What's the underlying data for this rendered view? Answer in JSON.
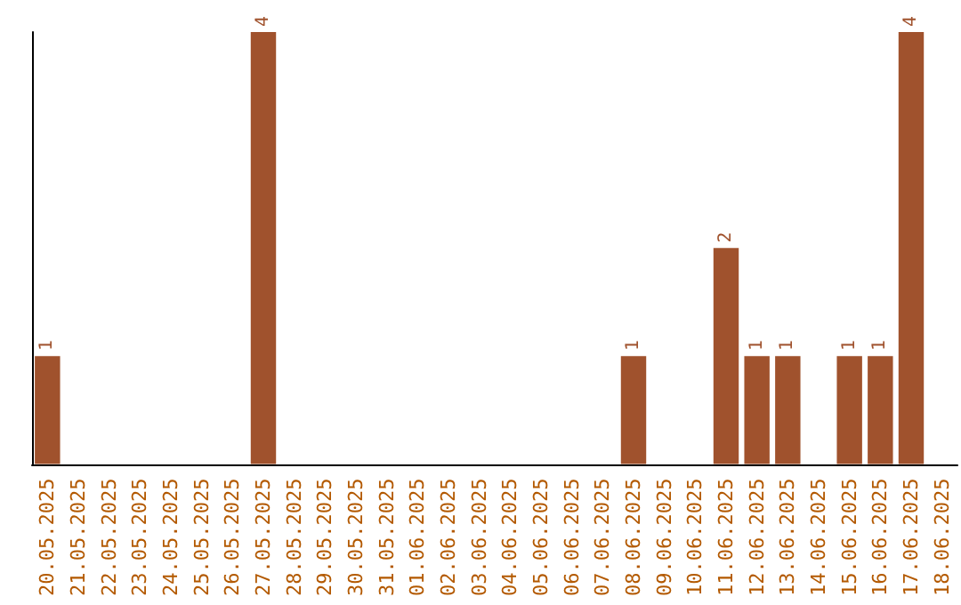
{
  "chart_data": {
    "type": "bar",
    "categories": [
      "20.05.2025",
      "21.05.2025",
      "22.05.2025",
      "23.05.2025",
      "24.05.2025",
      "25.05.2025",
      "26.05.2025",
      "27.05.2025",
      "28.05.2025",
      "29.05.2025",
      "30.05.2025",
      "31.05.2025",
      "01.06.2025",
      "02.06.2025",
      "03.06.2025",
      "04.06.2025",
      "05.06.2025",
      "06.06.2025",
      "07.06.2025",
      "08.06.2025",
      "09.06.2025",
      "10.06.2025",
      "11.06.2025",
      "12.06.2025",
      "13.06.2025",
      "14.06.2025",
      "15.06.2025",
      "16.06.2025",
      "17.06.2025",
      "18.06.2025"
    ],
    "values": [
      1,
      0,
      0,
      0,
      0,
      0,
      0,
      4,
      0,
      0,
      0,
      0,
      0,
      0,
      0,
      0,
      0,
      0,
      0,
      1,
      0,
      0,
      2,
      1,
      1,
      0,
      1,
      1,
      4,
      0
    ],
    "value_labels": [
      "1",
      null,
      null,
      null,
      null,
      null,
      null,
      "4",
      null,
      null,
      null,
      null,
      null,
      null,
      null,
      null,
      null,
      null,
      null,
      "1",
      null,
      null,
      "2",
      "1",
      "1",
      null,
      "1",
      "1",
      "4",
      null
    ],
    "color": "#a0522d",
    "ylim": [
      0,
      4
    ],
    "tick_labels": "x"
  }
}
